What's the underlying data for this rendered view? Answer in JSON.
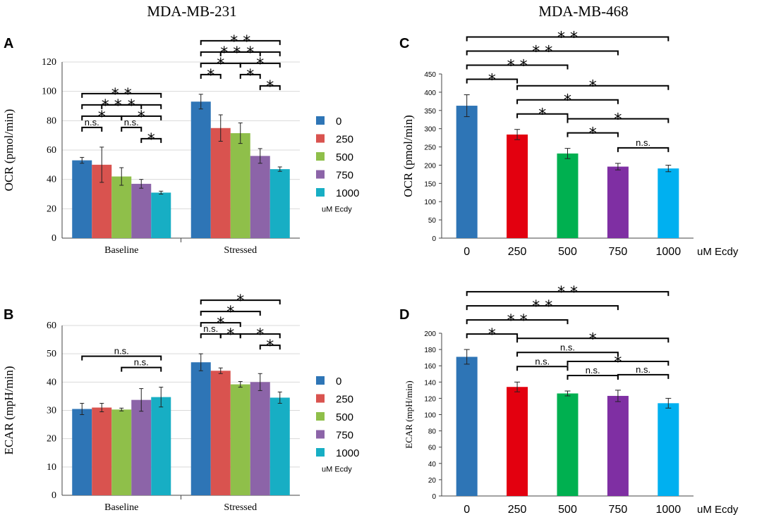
{
  "figure": {
    "col_titles": [
      "MDA-MB-231",
      "MDA-MB-468"
    ]
  },
  "chart_data": [
    {
      "id": "A",
      "panel_label": "A",
      "type": "bar",
      "ylabel": "OCR (pmol/min)",
      "ylim": [
        0,
        120
      ],
      "yticks": [
        0,
        20,
        40,
        60,
        80,
        100,
        120
      ],
      "grid": true,
      "categories": [
        "Baseline",
        "Stressed"
      ],
      "series": [
        {
          "name": "0",
          "values": [
            53,
            93
          ],
          "errors": [
            2,
            5
          ],
          "color": "#2e75b6"
        },
        {
          "name": "250",
          "values": [
            50,
            75
          ],
          "errors": [
            12,
            9
          ],
          "color": "#d9534f"
        },
        {
          "name": "500",
          "values": [
            42,
            71.5
          ],
          "errors": [
            6,
            7
          ],
          "color": "#8fbf4a"
        },
        {
          "name": "750",
          "values": [
            37,
            56
          ],
          "errors": [
            3,
            5
          ],
          "color": "#8c64a8"
        },
        {
          "name": "1000",
          "values": [
            31,
            47
          ],
          "errors": [
            1,
            1.5
          ],
          "color": "#17aec4"
        }
      ],
      "legend_title": "uM Ecdy",
      "legend_position": "right",
      "annotations": [
        {
          "cat": 0,
          "from": 0,
          "to": 1,
          "label": "n.s.",
          "level": 1
        },
        {
          "cat": 0,
          "from": 0,
          "to": 2,
          "label": "*",
          "level": 2
        },
        {
          "cat": 0,
          "from": 0,
          "to": 3,
          "label": "**",
          "level": 3
        },
        {
          "cat": 0,
          "from": 0,
          "to": 4,
          "label": "**",
          "level": 4
        },
        {
          "cat": 0,
          "from": 2,
          "to": 3,
          "label": "n.s.",
          "level": 1
        },
        {
          "cat": 0,
          "from": 3,
          "to": 4,
          "label": "*",
          "level": 0
        },
        {
          "cat": 0,
          "from": 2,
          "to": 4,
          "label": "*",
          "level": 2
        },
        {
          "cat": 0,
          "from": 1,
          "to": 4,
          "label": "*",
          "level": 3
        },
        {
          "cat": 1,
          "from": 0,
          "to": 1,
          "label": "*",
          "level": 1
        },
        {
          "cat": 1,
          "from": 0,
          "to": 2,
          "label": "*",
          "level": 2
        },
        {
          "cat": 1,
          "from": 0,
          "to": 3,
          "label": "**",
          "level": 3
        },
        {
          "cat": 1,
          "from": 0,
          "to": 4,
          "label": "**",
          "level": 4
        },
        {
          "cat": 1,
          "from": 3,
          "to": 4,
          "label": "*",
          "level": 0
        },
        {
          "cat": 1,
          "from": 2,
          "to": 3,
          "label": "*",
          "level": 1
        },
        {
          "cat": 1,
          "from": 2,
          "to": 4,
          "label": "*",
          "level": 2
        },
        {
          "cat": 1,
          "from": 1,
          "to": 4,
          "label": "*",
          "level": 3
        }
      ]
    },
    {
      "id": "B",
      "panel_label": "B",
      "type": "bar",
      "ylabel": "ECAR (mpH/min)",
      "ylim": [
        0,
        60
      ],
      "yticks": [
        0,
        10,
        20,
        30,
        40,
        50,
        60
      ],
      "grid": true,
      "categories": [
        "Baseline",
        "Stressed"
      ],
      "series": [
        {
          "name": "0",
          "values": [
            30.5,
            47
          ],
          "errors": [
            2,
            3
          ],
          "color": "#2e75b6"
        },
        {
          "name": "250",
          "values": [
            31,
            44
          ],
          "errors": [
            1.5,
            1
          ],
          "color": "#d9534f"
        },
        {
          "name": "500",
          "values": [
            30.3,
            39.2
          ],
          "errors": [
            0.5,
            1
          ],
          "color": "#8fbf4a"
        },
        {
          "name": "750",
          "values": [
            33.7,
            40
          ],
          "errors": [
            4,
            3
          ],
          "color": "#8c64a8"
        },
        {
          "name": "1000",
          "values": [
            34.7,
            34.5
          ],
          "errors": [
            3.5,
            2
          ],
          "color": "#17aec4"
        }
      ],
      "legend_title": "uM Ecdy",
      "legend_position": "right",
      "annotations": [
        {
          "cat": 0,
          "from": 0,
          "to": 4,
          "label": "n.s.",
          "level": 2
        },
        {
          "cat": 0,
          "from": 2,
          "to": 4,
          "label": "n.s.",
          "level": 1
        },
        {
          "cat": 1,
          "from": 0,
          "to": 1,
          "label": "n.s.",
          "level": 1
        },
        {
          "cat": 1,
          "from": 1,
          "to": 2,
          "label": "*",
          "level": 1
        },
        {
          "cat": 1,
          "from": 0,
          "to": 2,
          "label": "*",
          "level": 2
        },
        {
          "cat": 1,
          "from": 0,
          "to": 3,
          "label": "*",
          "level": 3
        },
        {
          "cat": 1,
          "from": 0,
          "to": 4,
          "label": "*",
          "level": 4
        },
        {
          "cat": 1,
          "from": 3,
          "to": 4,
          "label": "*",
          "level": 0
        },
        {
          "cat": 1,
          "from": 2,
          "to": 4,
          "label": "*",
          "level": 1
        }
      ]
    },
    {
      "id": "C",
      "panel_label": "C",
      "type": "bar",
      "ylabel": "OCR (pmol/min)",
      "ylim": [
        0,
        450
      ],
      "yticks": [
        0,
        50,
        100,
        150,
        200,
        250,
        300,
        350,
        400,
        450
      ],
      "grid": false,
      "categories": [
        "0",
        "250",
        "500",
        "750",
        "1000"
      ],
      "values": [
        363,
        284,
        232,
        196,
        191
      ],
      "errors": [
        30,
        14,
        14,
        9,
        9
      ],
      "colors": [
        "#2e75b6",
        "#e3000f",
        "#00b050",
        "#7f2fa3",
        "#00b0f0"
      ],
      "unit_label": "uM  Ecdy",
      "annotations": [
        {
          "from": 0,
          "to": 1,
          "label": "*",
          "level": 1
        },
        {
          "from": 0,
          "to": 2,
          "label": "**",
          "level": 2
        },
        {
          "from": 0,
          "to": 3,
          "label": "**",
          "level": 3
        },
        {
          "from": 0,
          "to": 4,
          "label": "**",
          "level": 4
        },
        {
          "from": 1,
          "to": 2,
          "label": "*",
          "level": 1
        },
        {
          "from": 1,
          "to": 3,
          "label": "*",
          "level": 2
        },
        {
          "from": 1,
          "to": 4,
          "label": "*",
          "level": 3
        },
        {
          "from": 2,
          "to": 3,
          "label": "*",
          "level": 1
        },
        {
          "from": 2,
          "to": 4,
          "label": "*",
          "level": 2
        },
        {
          "from": 3,
          "to": 4,
          "label": "n.s.",
          "level": 1
        }
      ]
    },
    {
      "id": "D",
      "panel_label": "D",
      "type": "bar",
      "ylabel": "ECAR (mpH/min)",
      "ylim": [
        0,
        200
      ],
      "yticks": [
        0,
        20,
        40,
        60,
        80,
        100,
        120,
        140,
        160,
        180,
        200
      ],
      "grid": false,
      "categories": [
        "0",
        "250",
        "500",
        "750",
        "1000"
      ],
      "values": [
        171,
        134,
        126,
        123,
        114
      ],
      "errors": [
        9,
        6,
        3,
        7,
        6
      ],
      "colors": [
        "#2e75b6",
        "#e3000f",
        "#00b050",
        "#7f2fa3",
        "#00b0f0"
      ],
      "unit_label": "uM  Ecdy",
      "annotations": [
        {
          "from": 0,
          "to": 1,
          "label": "*",
          "level": 1
        },
        {
          "from": 0,
          "to": 2,
          "label": "**",
          "level": 2
        },
        {
          "from": 0,
          "to": 3,
          "label": "**",
          "level": 3
        },
        {
          "from": 0,
          "to": 4,
          "label": "**",
          "level": 4
        },
        {
          "from": 1,
          "to": 2,
          "label": "n.s.",
          "level": 1
        },
        {
          "from": 1,
          "to": 3,
          "label": "n.s.",
          "level": 2
        },
        {
          "from": 1,
          "to": 4,
          "label": "*",
          "level": 3
        },
        {
          "from": 2,
          "to": 3,
          "label": "n.s.",
          "level": 1
        },
        {
          "from": 2,
          "to": 4,
          "label": "*",
          "level": 2
        },
        {
          "from": 3,
          "to": 4,
          "label": "n.s.",
          "level": 1
        }
      ]
    }
  ]
}
